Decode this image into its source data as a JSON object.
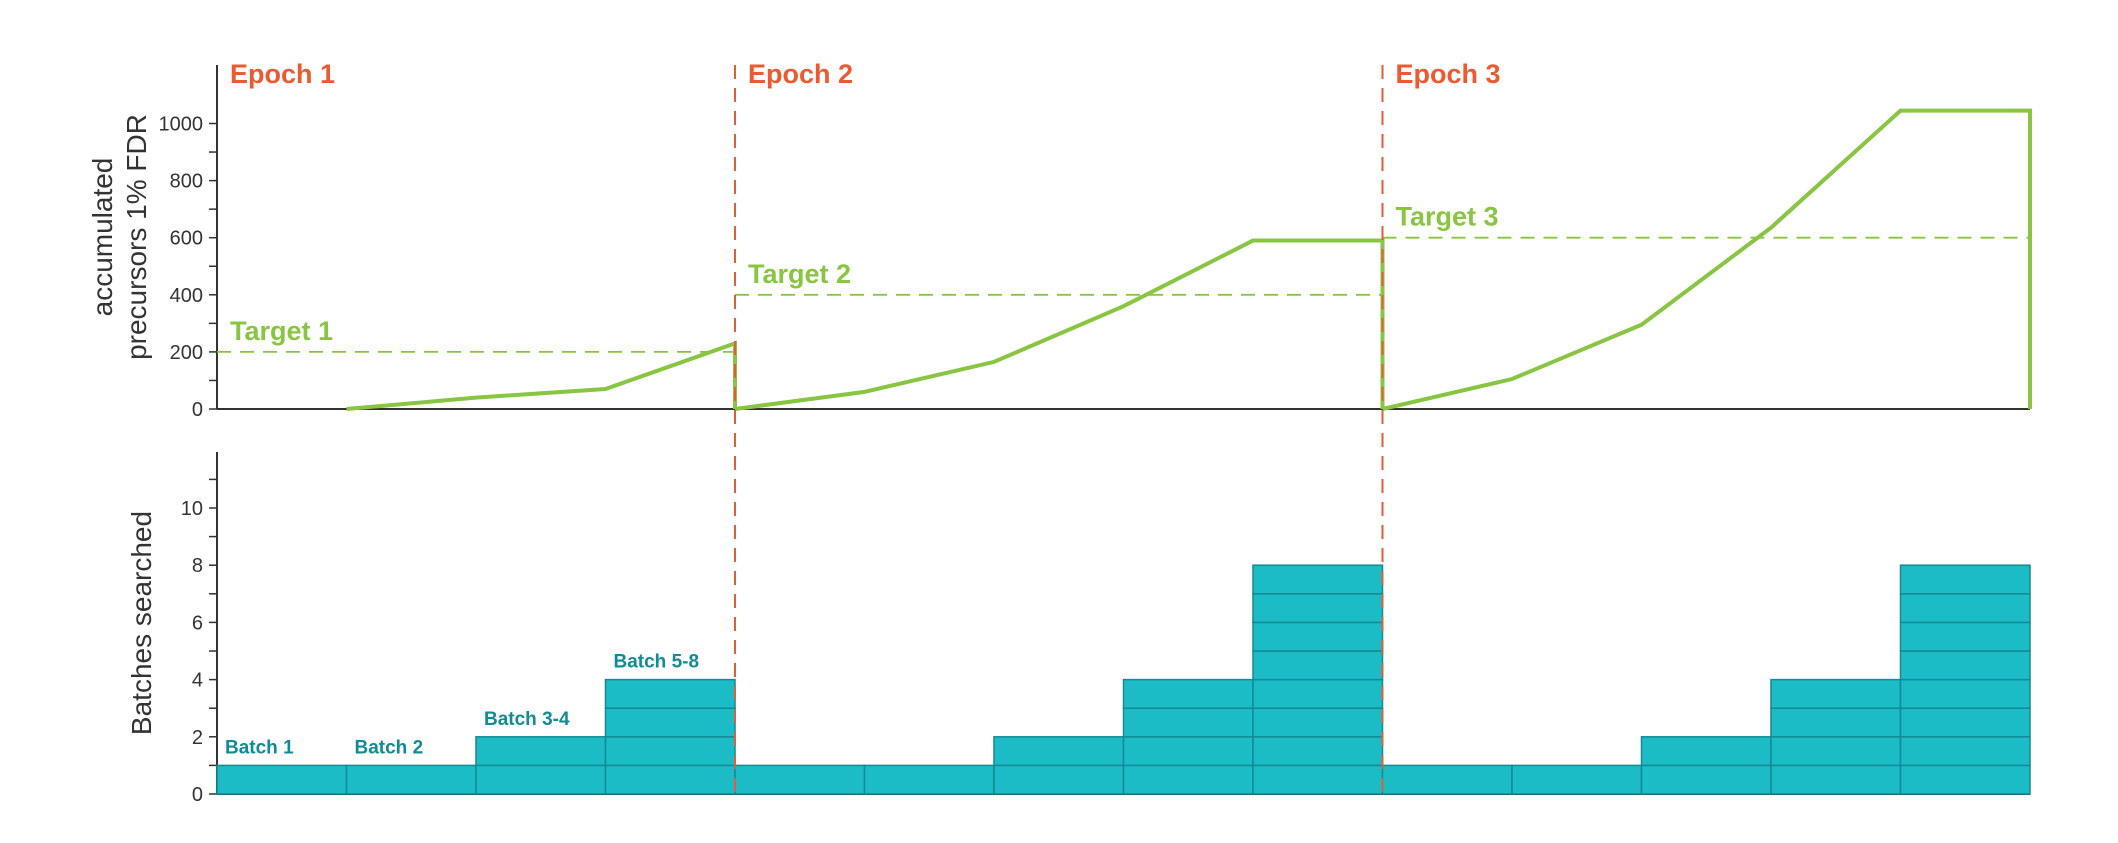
{
  "colors": {
    "accent_red": "#ec5a32",
    "line_green": "#88c540",
    "bar_teal": "#1bbcc6",
    "bar_edge": "#138a94",
    "label_teal": "#0f8c96",
    "axis": "#333333"
  },
  "chart_data": [
    {
      "type": "line",
      "ylabel": "accumulated precursors 1% FDR",
      "ylim": [
        0,
        1100
      ],
      "yticks": [
        "0",
        "200",
        "400",
        "600",
        "800",
        "1000"
      ],
      "xlim": [
        0,
        14
      ],
      "grid": false,
      "epochs": [
        {
          "label": "Epoch 1",
          "start": 0
        },
        {
          "label": "Epoch 2",
          "start": 4
        },
        {
          "label": "Epoch 3",
          "start": 9
        }
      ],
      "targets": [
        {
          "label": "Target 1",
          "value": 200,
          "x_start": 0,
          "x_end": 4
        },
        {
          "label": "Target 2",
          "value": 400,
          "x_start": 4,
          "x_end": 9
        },
        {
          "label": "Target 3",
          "value": 600,
          "x_start": 9,
          "x_end": 14
        }
      ],
      "series": [
        {
          "x": [
            1,
            2,
            3,
            4,
            4
          ],
          "y": [
            0,
            40,
            70,
            230,
            0
          ]
        },
        {
          "x": [
            4,
            5,
            6,
            7,
            8,
            9,
            9
          ],
          "y": [
            0,
            60,
            165,
            360,
            590,
            590,
            0
          ]
        },
        {
          "x": [
            9,
            10,
            11,
            12,
            13,
            14,
            14
          ],
          "y": [
            0,
            105,
            295,
            635,
            1045,
            1045,
            0
          ]
        }
      ]
    },
    {
      "type": "bar",
      "ylabel": "Batches searched",
      "ylim": [
        0,
        12
      ],
      "yticks": [
        "0",
        "2",
        "4",
        "6",
        "8",
        "10"
      ],
      "values": [
        1,
        1,
        2,
        4,
        1,
        1,
        2,
        4,
        8,
        1,
        1,
        2,
        4,
        8
      ],
      "bar_labels": [
        {
          "index": 0,
          "text": "Batch 1"
        },
        {
          "index": 1,
          "text": "Batch 2"
        },
        {
          "index": 2,
          "text": "Batch 3-4"
        },
        {
          "index": 3,
          "text": "Batch 5-8"
        }
      ]
    }
  ]
}
